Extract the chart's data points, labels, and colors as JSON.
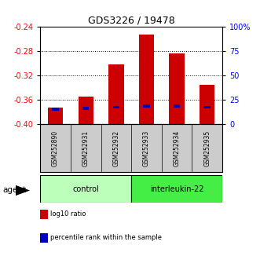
{
  "title": "GDS3226 / 19478",
  "samples": [
    "GSM252890",
    "GSM252931",
    "GSM252932",
    "GSM252933",
    "GSM252934",
    "GSM252935"
  ],
  "log10_ratio": [
    -0.373,
    -0.355,
    -0.302,
    -0.253,
    -0.285,
    -0.336
  ],
  "percentile_rank": [
    15,
    16,
    17,
    18,
    18,
    17
  ],
  "ylim_left": [
    -0.4,
    -0.24
  ],
  "yticks_left": [
    -0.4,
    -0.36,
    -0.32,
    -0.28,
    -0.24
  ],
  "yticks_right": [
    0,
    25,
    50,
    75,
    100
  ],
  "ylim_right": [
    0,
    100
  ],
  "bar_bottom": -0.4,
  "bar_color": "#cc0000",
  "pct_color": "#0000bb",
  "groups": [
    {
      "label": "control",
      "indices": [
        0,
        1,
        2
      ],
      "color": "#bbffbb"
    },
    {
      "label": "interleukin-22",
      "indices": [
        3,
        4,
        5
      ],
      "color": "#44ee44"
    }
  ],
  "group_label": "agent",
  "legend_items": [
    {
      "label": "log10 ratio",
      "color": "#cc0000"
    },
    {
      "label": "percentile rank within the sample",
      "color": "#0000bb"
    }
  ],
  "bar_width": 0.5,
  "pct_bar_width": 0.22,
  "grid_color": "black",
  "grid_style": "dotted",
  "label_bg": "#cccccc"
}
